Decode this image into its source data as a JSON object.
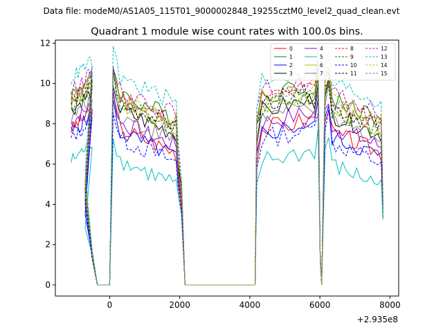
{
  "header": {
    "data_file": "Data file: modeM0/AS1A05_115T01_9000002848_19255cztM0_level2_quad_clean.evt"
  },
  "chart_data": {
    "type": "line",
    "title": "Quadrant 1 module wise count rates with 100.0s bins.",
    "xlabel": "",
    "ylabel": "",
    "offset_label": "+2.935e8",
    "xlim": [
      -1550,
      8250
    ],
    "ylim": [
      -0.55,
      12.15
    ],
    "x_ticks": [
      0,
      2000,
      4000,
      6000,
      8000
    ],
    "x_tick_labels": [
      "0",
      "2000",
      "4000",
      "6000",
      "8000"
    ],
    "y_ticks": [
      0,
      2,
      4,
      6,
      8,
      10,
      12
    ],
    "y_tick_labels": [
      "0",
      "2",
      "4",
      "6",
      "8",
      "10",
      "12"
    ],
    "grid": false,
    "legend": {
      "position": "top-right",
      "columns": 4
    },
    "segments": [
      {
        "start": -1100,
        "count": 13
      },
      {
        "start": 4200,
        "count": 12
      }
    ],
    "gaps": [
      [
        -700,
        -500,
        -350
      ],
      [
        1950,
        2050,
        2150
      ],
      [
        5950,
        6050,
        6150
      ]
    ],
    "post_gap": [
      {
        "start": 100,
        "count": 19
      },
      {
        "start": 6250,
        "count": 16
      }
    ],
    "zero_span": [
      -350,
      100,
      2150,
      4150
    ],
    "series": [
      {
        "name": "0",
        "color": "#ff0000",
        "dash": "solid",
        "level": 7.3
      },
      {
        "name": "1",
        "color": "#008000",
        "dash": "solid",
        "level": 9.0
      },
      {
        "name": "2",
        "color": "#0000ff",
        "dash": "solid",
        "level": 7.1
      },
      {
        "name": "3",
        "color": "#000000",
        "dash": "solid",
        "level": 8.2
      },
      {
        "name": "4",
        "color": "#9400d3",
        "dash": "solid",
        "level": 7.6
      },
      {
        "name": "5",
        "color": "#00bfbf",
        "dash": "solid",
        "level": 5.7
      },
      {
        "name": "6",
        "color": "#bfbf00",
        "dash": "solid",
        "level": 8.5
      },
      {
        "name": "7",
        "color": "#808080",
        "dash": "solid",
        "level": 7.9
      },
      {
        "name": "8",
        "color": "#ff0000",
        "dash": "dashed",
        "level": 8.8
      },
      {
        "name": "9",
        "color": "#008000",
        "dash": "dashed",
        "level": 8.4
      },
      {
        "name": "10",
        "color": "#0000ff",
        "dash": "dashed",
        "level": 6.8
      },
      {
        "name": "11",
        "color": "#000000",
        "dash": "dashed",
        "level": 8.6
      },
      {
        "name": "12",
        "color": "#bf00bf",
        "dash": "dashed",
        "level": 9.2
      },
      {
        "name": "13",
        "color": "#00bfbf",
        "dash": "dashed",
        "level": 9.8
      },
      {
        "name": "14",
        "color": "#bfbf00",
        "dash": "dashed",
        "level": 8.9
      },
      {
        "name": "15",
        "color": "#808080",
        "dash": "dashed",
        "level": 8.7
      }
    ]
  }
}
